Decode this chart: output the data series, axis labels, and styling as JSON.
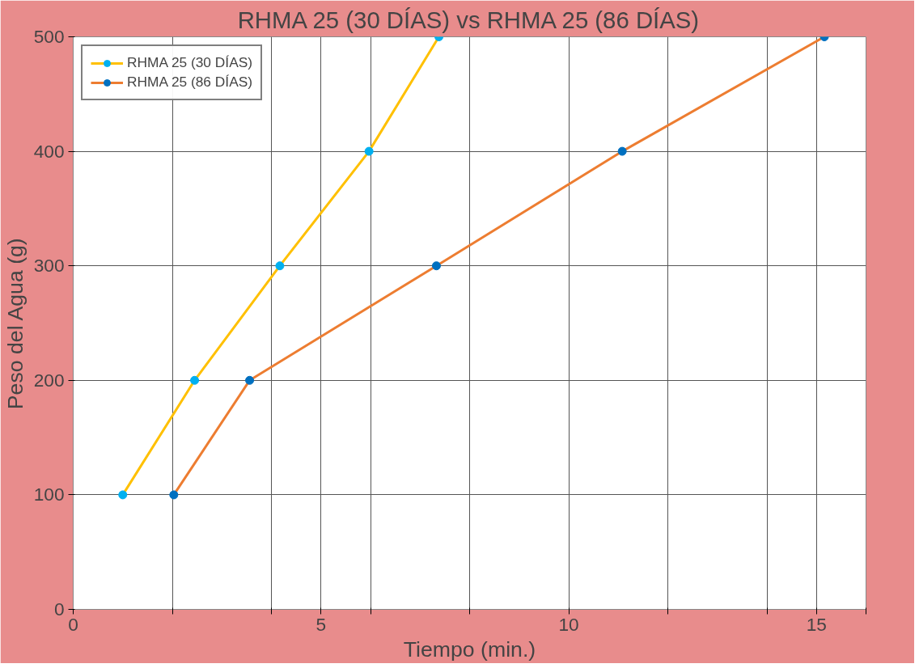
{
  "chart_data": {
    "type": "line",
    "title": "RHMA 25 (30 DÍAS) vs RHMA 25 (86 DÍAS)",
    "xlabel": "Tiempo (min.)",
    "ylabel": "Peso del Agua (g)",
    "xlim": [
      0,
      16
    ],
    "xticks": [
      0,
      {
        "value": 2,
        "label": null
      },
      {
        "value": 4,
        "label": null
      },
      5,
      {
        "value": 6,
        "label": null
      },
      {
        "value": 8,
        "label": null
      },
      10,
      {
        "value": 12,
        "label": null
      },
      {
        "value": 14,
        "label": null
      },
      15,
      {
        "value": 16,
        "label": null
      }
    ],
    "ylim": [
      0,
      500
    ],
    "yticks": [
      0,
      100,
      200,
      300,
      400,
      500
    ],
    "grid": true,
    "legend": "top left",
    "marker": "circle",
    "line_style": "solid",
    "series": [
      {
        "name": "RHMA 25 (30 DÍAS)",
        "color": "#ffc000",
        "colors": [
          "#00b0f0",
          "#00b0f0",
          "#00b0f0",
          "#00b0f0",
          "#00b0f0"
        ],
        "x": [
          1.0,
          2.45,
          4.17,
          5.97,
          7.38
        ],
        "values": [
          100,
          200,
          300,
          400,
          500
        ]
      },
      {
        "name": "RHMA 25 (86 DÍAS)",
        "color": "#ed7d31",
        "colors": [
          "#0070c0",
          "#0070c0",
          "#0070c0",
          "#0070c0",
          "#0070c0"
        ],
        "x": [
          2.03,
          3.56,
          7.33,
          11.08,
          15.16
        ],
        "values": [
          100,
          200,
          300,
          400,
          500
        ]
      }
    ]
  }
}
